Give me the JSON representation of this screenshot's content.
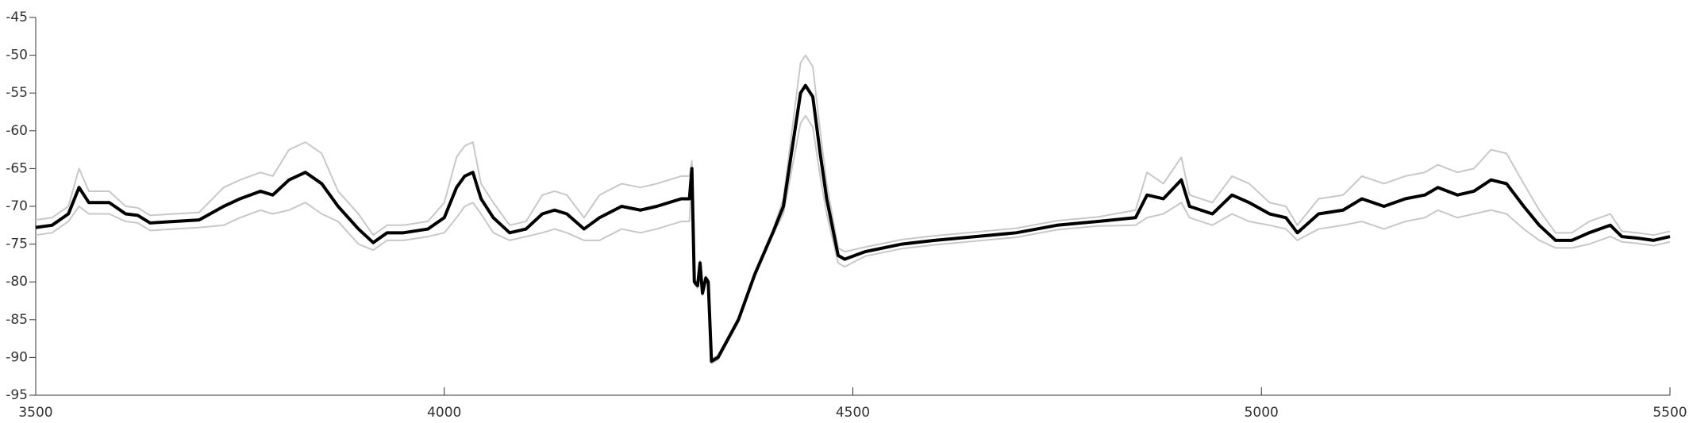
{
  "chart_data": {
    "type": "line",
    "x": [
      3500,
      3520,
      3540,
      3553,
      3565,
      3590,
      3610,
      3625,
      3640,
      3670,
      3700,
      3730,
      3750,
      3775,
      3790,
      3810,
      3830,
      3850,
      3870,
      3895,
      3913,
      3930,
      3950,
      3980,
      4000,
      4015,
      4025,
      4035,
      4045,
      4060,
      4080,
      4100,
      4120,
      4135,
      4150,
      4171,
      4190,
      4217,
      4240,
      4260,
      4290,
      4300,
      4303,
      4306,
      4310,
      4313,
      4316,
      4320,
      4323,
      4327,
      4335,
      4360,
      4380,
      4402,
      4415,
      4429,
      4436,
      4442,
      4451,
      4460,
      4468,
      4482,
      4490,
      4515,
      4560,
      4600,
      4650,
      4700,
      4750,
      4800,
      4846,
      4860,
      4880,
      4902,
      4912,
      4940,
      4964,
      4985,
      5010,
      5030,
      5044,
      5070,
      5100,
      5123,
      5150,
      5176,
      5200,
      5216,
      5240,
      5260,
      5281,
      5300,
      5321,
      5340,
      5360,
      5380,
      5401,
      5427,
      5441,
      5460,
      5480,
      5500
    ],
    "series": [
      {
        "color": "#c8c8c8",
        "values": [
          -71.8,
          -71.5,
          -70,
          -65,
          -68,
          -68,
          -70,
          -70.2,
          -71.2,
          -71,
          -70.8,
          -67.5,
          -66.5,
          -65.5,
          -66,
          -62.5,
          -61.5,
          -63,
          -68,
          -71,
          -73.8,
          -72.5,
          -72.5,
          -72,
          -69.5,
          -63.5,
          -62,
          -61.5,
          -67,
          -69.5,
          -72.5,
          -72,
          -68.5,
          -68,
          -68.5,
          -71.5,
          -68.5,
          -67,
          -67.5,
          -67,
          -66,
          -66,
          -64,
          -79.7,
          -80.2,
          -77.2,
          -81.2,
          -79.2,
          -79.7,
          -90.2,
          -89.7,
          -84.7,
          -78.7,
          -73.2,
          -69,
          -57,
          -51,
          -50,
          -51.5,
          -60,
          -67,
          -75.5,
          -76,
          -75.4,
          -74.4,
          -73.9,
          -73.4,
          -72.9,
          -71.9,
          -71.4,
          -70.5,
          -65.5,
          -67,
          -63.5,
          -68.5,
          -69.5,
          -66,
          -67,
          -69.5,
          -70,
          -72.5,
          -69,
          -68.5,
          -66,
          -67,
          -66,
          -65.5,
          -64.5,
          -65.5,
          -65,
          -62.5,
          -63,
          -67,
          -70.5,
          -73.5,
          -73.5,
          -72,
          -71,
          -73.3,
          -73.5,
          -73.8,
          -73.3
        ]
      },
      {
        "color": "#c8c8c8",
        "values": [
          -73.8,
          -73.5,
          -72,
          -70,
          -71,
          -71,
          -72,
          -72.2,
          -73.2,
          -73,
          -72.8,
          -72.5,
          -71.5,
          -70.5,
          -71,
          -70.5,
          -69.5,
          -71,
          -72,
          -75,
          -75.8,
          -74.5,
          -74.5,
          -74,
          -73.5,
          -71.5,
          -70,
          -69.5,
          -71,
          -73.5,
          -74.5,
          -74,
          -73.5,
          -73,
          -73.5,
          -74.5,
          -74.5,
          -73,
          -73.5,
          -73,
          -72,
          -72,
          -66,
          -80.3,
          -80.8,
          -77.8,
          -81.8,
          -79.8,
          -80.3,
          -90.8,
          -90.3,
          -85.3,
          -79.3,
          -73.8,
          -71,
          -63,
          -59,
          -58,
          -59.5,
          -66,
          -71,
          -77.5,
          -78,
          -76.6,
          -75.6,
          -75.1,
          -74.6,
          -74.1,
          -73.1,
          -72.6,
          -72.5,
          -71.5,
          -71,
          -69.5,
          -71.5,
          -72.5,
          -71,
          -72,
          -72.5,
          -73,
          -74.5,
          -73,
          -72.5,
          -72,
          -73,
          -72,
          -71.5,
          -70.5,
          -71.5,
          -71,
          -70.5,
          -71,
          -73,
          -74.5,
          -75.5,
          -75.5,
          -75,
          -74,
          -74.7,
          -74.9,
          -75.2,
          -74.7
        ]
      },
      {
        "color": "#000000",
        "values": [
          -72.8,
          -72.5,
          -71,
          -67.5,
          -69.5,
          -69.5,
          -71,
          -71.2,
          -72.2,
          -72,
          -71.8,
          -70,
          -69,
          -68,
          -68.5,
          -66.5,
          -65.5,
          -67,
          -70,
          -73,
          -74.8,
          -73.5,
          -73.5,
          -73,
          -71.5,
          -67.5,
          -66,
          -65.5,
          -69,
          -71.5,
          -73.5,
          -73,
          -71,
          -70.5,
          -71,
          -73,
          -71.5,
          -70,
          -70.5,
          -70,
          -69,
          -69,
          -65,
          -80,
          -80.5,
          -77.5,
          -81.5,
          -79.5,
          -80,
          -90.5,
          -90,
          -85,
          -79,
          -73.5,
          -70,
          -60,
          -55,
          -54,
          -55.5,
          -63,
          -69,
          -76.5,
          -77,
          -76,
          -75,
          -74.5,
          -74,
          -73.5,
          -72.5,
          -72,
          -71.5,
          -68.5,
          -69,
          -66.5,
          -70,
          -71,
          -68.5,
          -69.5,
          -71,
          -71.5,
          -73.5,
          -71,
          -70.5,
          -69,
          -70,
          -69,
          -68.5,
          -67.5,
          -68.5,
          -68,
          -66.5,
          -67,
          -70,
          -72.5,
          -74.5,
          -74.5,
          -73.5,
          -72.5,
          -74,
          -74.2,
          -74.5,
          -74
        ]
      }
    ],
    "xlim": [
      3500,
      5500
    ],
    "ylim": [
      -95,
      -45
    ],
    "xticks": [
      3500,
      4000,
      4500,
      5000,
      5500
    ],
    "yticks": [
      -95,
      -90,
      -85,
      -80,
      -75,
      -70,
      -65,
      -60,
      -55,
      -50,
      -45
    ]
  }
}
